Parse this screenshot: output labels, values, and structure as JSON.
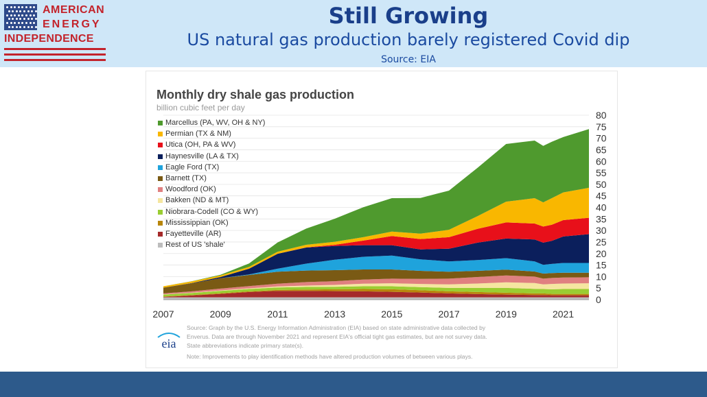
{
  "logo": {
    "line1": "AMERICAN",
    "line2": "ENERGY",
    "line3": "INDEPENDENCE",
    "colors": {
      "red": "#c3232b",
      "blue": "#2e4a8a"
    }
  },
  "header": {
    "title": "Still Growing",
    "subtitle": "US natural gas production barely registered Covid dip",
    "source": "Source: EIA"
  },
  "chart_data": {
    "type": "area",
    "stacked": true,
    "title": "Monthly dry shale gas production",
    "unit": "billion cubic feet per day",
    "x_tick_labels": [
      "2007",
      "2009",
      "2011",
      "2013",
      "2015",
      "2017",
      "2019",
      "2021"
    ],
    "y_tick_labels": [
      "0",
      "5",
      "10",
      "15",
      "20",
      "25",
      "30",
      "35",
      "40",
      "45",
      "50",
      "55",
      "60",
      "65",
      "70",
      "75",
      "80"
    ],
    "xlim": [
      2007,
      2021.9
    ],
    "ylim": [
      0,
      80
    ],
    "y_axis_side": "right",
    "legend_position": "top-left",
    "x": [
      2007,
      2008,
      2009,
      2010,
      2011,
      2012,
      2013,
      2014,
      2015,
      2016,
      2017,
      2018,
      2019,
      2020,
      2020.3,
      2020.6,
      2021,
      2021.9
    ],
    "series": [
      {
        "name": "Rest of US 'shale'",
        "color": "#bdbdbd",
        "values": [
          1.0,
          1.0,
          1.0,
          1.0,
          1.0,
          1.0,
          1.0,
          1.0,
          1.0,
          1.0,
          1.0,
          1.0,
          1.0,
          1.0,
          1.0,
          1.0,
          1.0,
          1.0
        ]
      },
      {
        "name": "Fayetteville (AR)",
        "color": "#a52a2a",
        "values": [
          0.2,
          0.8,
          1.5,
          2.3,
          2.8,
          2.8,
          2.7,
          2.6,
          2.4,
          2.1,
          1.7,
          1.4,
          1.2,
          1.0,
          1.0,
          0.9,
          0.9,
          0.9
        ]
      },
      {
        "name": "Mississippian (OK)",
        "color": "#b8860b",
        "values": [
          0.2,
          0.2,
          0.3,
          0.3,
          0.4,
          0.6,
          0.8,
          1.0,
          1.1,
          1.0,
          0.9,
          0.9,
          0.8,
          0.7,
          0.7,
          0.6,
          0.6,
          0.6
        ]
      },
      {
        "name": "Niobrara-Codell (CO & WY)",
        "color": "#9acd32",
        "values": [
          0.8,
          0.9,
          1.0,
          1.0,
          1.1,
          1.1,
          1.1,
          1.2,
          1.3,
          1.3,
          1.5,
          1.8,
          2.1,
          2.0,
          1.9,
          2.0,
          2.1,
          2.1
        ]
      },
      {
        "name": "Bakken (ND & MT)",
        "color": "#f5e6a0",
        "values": [
          0.1,
          0.1,
          0.2,
          0.3,
          0.4,
          0.6,
          0.8,
          1.1,
          1.3,
          1.4,
          1.5,
          1.9,
          2.4,
          2.5,
          2.0,
          2.3,
          2.4,
          2.5
        ]
      },
      {
        "name": "Woodford (OK)",
        "color": "#e08080",
        "values": [
          0.4,
          0.6,
          0.8,
          1.0,
          1.2,
          1.5,
          1.6,
          1.8,
          2.0,
          2.2,
          2.5,
          2.8,
          3.0,
          2.8,
          2.5,
          2.6,
          2.6,
          2.6
        ]
      },
      {
        "name": "Barnett (TX)",
        "color": "#7a5a14",
        "values": [
          2.5,
          3.5,
          4.5,
          4.8,
          5.2,
          5.0,
          4.8,
          4.4,
          4.0,
          3.5,
          3.0,
          2.7,
          2.5,
          2.2,
          2.2,
          2.1,
          2.1,
          2.0
        ]
      },
      {
        "name": "Eagle Ford (TX)",
        "color": "#1fa3dc",
        "values": [
          0.0,
          0.0,
          0.0,
          0.2,
          1.3,
          3.0,
          4.5,
          5.5,
          6.0,
          5.0,
          4.5,
          4.7,
          5.0,
          4.4,
          3.8,
          4.0,
          4.2,
          4.2
        ]
      },
      {
        "name": "Haynesville (LA & TX)",
        "color": "#0b1f5c",
        "values": [
          0.0,
          0.1,
          0.5,
          2.5,
          6.5,
          7.0,
          6.0,
          5.0,
          4.5,
          4.3,
          5.5,
          7.5,
          8.5,
          9.5,
          9.6,
          10.0,
          11.5,
          12.5
        ]
      },
      {
        "name": "Utica (OH, PA & WV)",
        "color": "#e8101a",
        "values": [
          0.0,
          0.0,
          0.0,
          0.0,
          0.0,
          0.1,
          0.5,
          2.0,
          4.0,
          4.5,
          5.0,
          6.0,
          7.0,
          6.9,
          7.0,
          7.0,
          7.1,
          7.1
        ]
      },
      {
        "name": "Permian (TX & NM)",
        "color": "#f9b700",
        "values": [
          0.6,
          0.7,
          0.7,
          0.8,
          0.9,
          1.1,
          1.3,
          1.5,
          1.9,
          2.3,
          3.2,
          5.5,
          9.0,
          11.0,
          10.5,
          11.5,
          12.0,
          13.0
        ]
      },
      {
        "name": "Marcellus (PA, WV, OH & NY)",
        "color": "#4f9a2e",
        "values": [
          0.0,
          0.1,
          0.3,
          1.5,
          4.0,
          7.0,
          10.0,
          13.0,
          14.5,
          15.5,
          17.0,
          21.0,
          25.0,
          25.0,
          24.5,
          24.5,
          24.0,
          25.5
        ]
      }
    ]
  },
  "note": {
    "line1": "Source: Graph by the U.S. Energy Information Administration (EIA) based on state administrative data collected by",
    "line2": "Enverus. Data are through November 2021 and represent EIA's official tight gas estimates, but are not survey data.",
    "line3": "State abbreviations indicate primary state(s).",
    "line4": "Note: Improvements to play identification methods have altered production volumes of between various plays."
  },
  "eia_logo_text": "eia",
  "colors": {
    "header_bg": "#cfe7f8",
    "title": "#1a3f8a",
    "footer": "#2d5a8b"
  }
}
